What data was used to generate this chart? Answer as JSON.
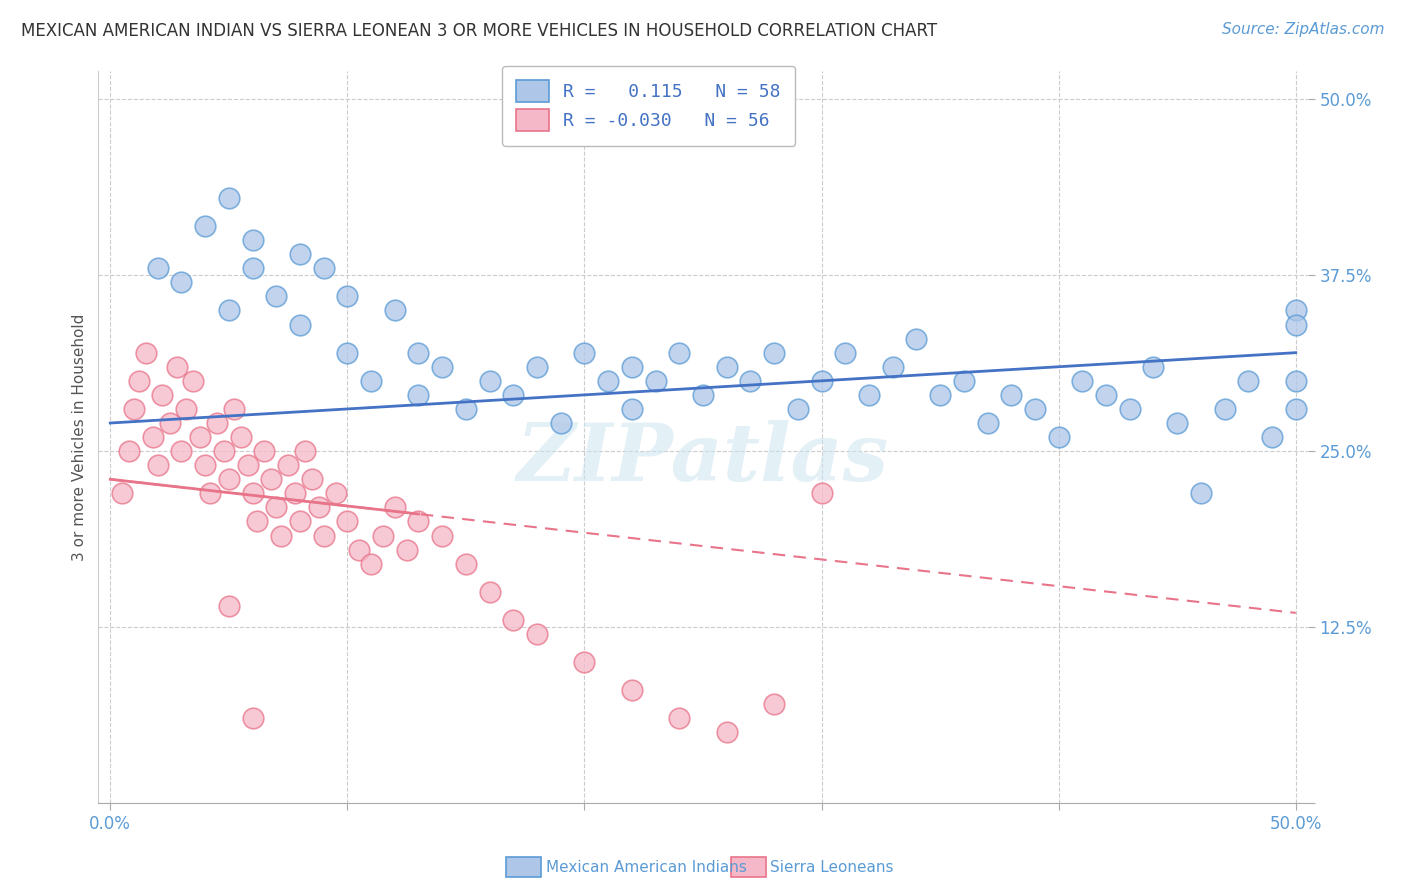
{
  "title": "MEXICAN AMERICAN INDIAN VS SIERRA LEONEAN 3 OR MORE VEHICLES IN HOUSEHOLD CORRELATION CHART",
  "source": "Source: ZipAtlas.com",
  "ylabel": "3 or more Vehicles in Household",
  "xlim": [
    -0.005,
    0.505
  ],
  "ylim": [
    0.0,
    0.52
  ],
  "xticks": [
    0.0,
    0.1,
    0.2,
    0.3,
    0.4,
    0.5
  ],
  "yticks": [
    0.0,
    0.125,
    0.25,
    0.375,
    0.5
  ],
  "xticklabels": [
    "0.0%",
    "",
    "",
    "",
    "",
    "50.0%"
  ],
  "yticklabels": [
    "",
    "12.5%",
    "25.0%",
    "37.5%",
    "50.0%"
  ],
  "blue_r": 0.115,
  "pink_r": -0.03,
  "blue_n": 58,
  "pink_n": 56,
  "blue_line_color": "#4472c4",
  "pink_line_color": "#e8748a",
  "blue_dot_face": "#aec6e8",
  "blue_dot_edge": "#5b9bd5",
  "pink_dot_face": "#f4b8c8",
  "pink_dot_edge": "#e8748a",
  "watermark": "ZIPatlas",
  "bg_color": "#ffffff",
  "grid_color": "#cccccc",
  "blue_line_y0": 0.27,
  "blue_line_y1": 0.32,
  "pink_line_y0": 0.23,
  "pink_line_y1": 0.135,
  "blue_scatter_x": [
    0.02,
    0.03,
    0.04,
    0.05,
    0.05,
    0.06,
    0.06,
    0.07,
    0.08,
    0.08,
    0.09,
    0.1,
    0.1,
    0.11,
    0.12,
    0.13,
    0.13,
    0.14,
    0.15,
    0.16,
    0.17,
    0.18,
    0.19,
    0.2,
    0.21,
    0.22,
    0.22,
    0.23,
    0.24,
    0.25,
    0.26,
    0.27,
    0.28,
    0.29,
    0.3,
    0.31,
    0.32,
    0.33,
    0.34,
    0.35,
    0.36,
    0.37,
    0.38,
    0.39,
    0.4,
    0.41,
    0.42,
    0.43,
    0.44,
    0.45,
    0.46,
    0.47,
    0.48,
    0.49,
    0.5,
    0.5,
    0.5,
    0.5
  ],
  "blue_scatter_y": [
    0.38,
    0.37,
    0.41,
    0.35,
    0.43,
    0.4,
    0.38,
    0.36,
    0.39,
    0.34,
    0.38,
    0.32,
    0.36,
    0.3,
    0.35,
    0.32,
    0.29,
    0.31,
    0.28,
    0.3,
    0.29,
    0.31,
    0.27,
    0.32,
    0.3,
    0.31,
    0.28,
    0.3,
    0.32,
    0.29,
    0.31,
    0.3,
    0.32,
    0.28,
    0.3,
    0.32,
    0.29,
    0.31,
    0.33,
    0.29,
    0.3,
    0.27,
    0.29,
    0.28,
    0.26,
    0.3,
    0.29,
    0.28,
    0.31,
    0.27,
    0.22,
    0.28,
    0.3,
    0.26,
    0.35,
    0.28,
    0.3,
    0.34
  ],
  "pink_scatter_x": [
    0.005,
    0.008,
    0.01,
    0.012,
    0.015,
    0.018,
    0.02,
    0.022,
    0.025,
    0.028,
    0.03,
    0.032,
    0.035,
    0.038,
    0.04,
    0.042,
    0.045,
    0.048,
    0.05,
    0.052,
    0.055,
    0.058,
    0.06,
    0.062,
    0.065,
    0.068,
    0.07,
    0.072,
    0.075,
    0.078,
    0.08,
    0.082,
    0.085,
    0.088,
    0.09,
    0.095,
    0.1,
    0.105,
    0.11,
    0.115,
    0.12,
    0.125,
    0.13,
    0.14,
    0.15,
    0.16,
    0.17,
    0.18,
    0.2,
    0.22,
    0.24,
    0.26,
    0.28,
    0.3,
    0.05,
    0.06
  ],
  "pink_scatter_y": [
    0.22,
    0.25,
    0.28,
    0.3,
    0.32,
    0.26,
    0.24,
    0.29,
    0.27,
    0.31,
    0.25,
    0.28,
    0.3,
    0.26,
    0.24,
    0.22,
    0.27,
    0.25,
    0.23,
    0.28,
    0.26,
    0.24,
    0.22,
    0.2,
    0.25,
    0.23,
    0.21,
    0.19,
    0.24,
    0.22,
    0.2,
    0.25,
    0.23,
    0.21,
    0.19,
    0.22,
    0.2,
    0.18,
    0.17,
    0.19,
    0.21,
    0.18,
    0.2,
    0.19,
    0.17,
    0.15,
    0.13,
    0.12,
    0.1,
    0.08,
    0.06,
    0.05,
    0.07,
    0.22,
    0.14,
    0.06
  ],
  "legend1_text": "R =   0.115   N = 58",
  "legend2_text": "R = -0.030   N = 56",
  "bottom_label1": "Mexican American Indians",
  "bottom_label2": "Sierra Leoneans",
  "title_color": "#333333",
  "source_color": "#5b9bd5",
  "tick_color": "#5b9bd5",
  "legend_text_color": "#4472c4",
  "ylabel_color": "#555555"
}
